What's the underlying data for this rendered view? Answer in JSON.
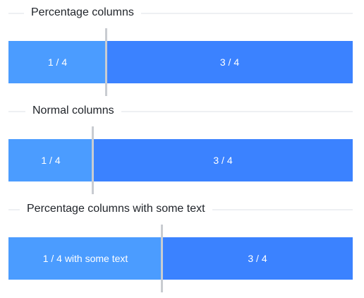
{
  "sections": [
    {
      "title": "Percentage columns",
      "columns": [
        {
          "label": "1 / 4"
        },
        {
          "label": "3 / 4"
        }
      ]
    },
    {
      "title": "Normal columns",
      "columns": [
        {
          "label": "1 / 4"
        },
        {
          "label": "3 / 4"
        }
      ]
    },
    {
      "title": "Percentage columns with some text",
      "columns": [
        {
          "label": "1 / 4 with some text"
        },
        {
          "label": "3 / 4"
        }
      ]
    }
  ],
  "colors": {
    "column_left": "#4b9cff",
    "column_right": "#3b82ff",
    "drag_handle": "#c9ccd1",
    "divider": "#eef0f3"
  }
}
